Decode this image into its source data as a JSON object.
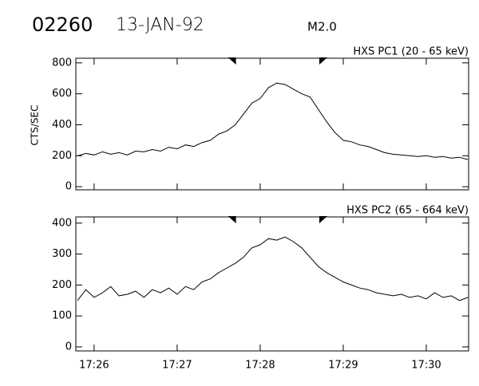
{
  "header": {
    "id": "02260",
    "date": "13-JAN-92",
    "class": "M2.0"
  },
  "chart_data": [
    {
      "type": "line",
      "title": "HXS PC1 (20 - 65 keV)",
      "y_label": "CTS/SEC",
      "x": [
        25.8,
        25.9,
        26.0,
        26.1,
        26.2,
        26.3,
        26.4,
        26.5,
        26.6,
        26.7,
        26.8,
        26.9,
        27.0,
        27.1,
        27.2,
        27.3,
        27.4,
        27.5,
        27.6,
        27.7,
        27.8,
        27.9,
        28.0,
        28.1,
        28.2,
        28.3,
        28.4,
        28.5,
        28.6,
        28.7,
        28.8,
        28.9,
        29.0,
        29.1,
        29.2,
        29.3,
        29.4,
        29.5,
        29.6,
        29.7,
        29.8,
        29.9,
        30.0,
        30.1,
        30.2,
        30.3,
        30.4,
        30.5
      ],
      "series": [
        {
          "color": "#000000",
          "values": [
            200,
            215,
            205,
            225,
            210,
            220,
            205,
            230,
            225,
            240,
            230,
            255,
            245,
            270,
            260,
            285,
            300,
            340,
            360,
            400,
            470,
            540,
            570,
            640,
            670,
            660,
            630,
            600,
            580,
            500,
            420,
            350,
            300,
            290,
            270,
            260,
            240,
            220,
            210,
            205,
            200,
            195,
            200,
            190,
            195,
            185,
            190,
            175
          ]
        }
      ],
      "xlim": [
        25.78,
        30.51
      ],
      "xticks": [
        26,
        27,
        28,
        29,
        30
      ],
      "ylim": [
        -20,
        830
      ],
      "yticks": [
        0,
        200,
        400,
        600,
        800
      ],
      "markers": [
        27.66,
        28.76
      ]
    },
    {
      "type": "line",
      "title": "HXS PC2 (65 - 664 keV)",
      "x": [
        25.8,
        25.9,
        26.0,
        26.1,
        26.2,
        26.3,
        26.4,
        26.5,
        26.6,
        26.7,
        26.8,
        26.9,
        27.0,
        27.1,
        27.2,
        27.3,
        27.4,
        27.5,
        27.6,
        27.7,
        27.8,
        27.9,
        28.0,
        28.1,
        28.2,
        28.3,
        28.4,
        28.5,
        28.6,
        28.7,
        28.8,
        28.9,
        29.0,
        29.1,
        29.2,
        29.3,
        29.4,
        29.5,
        29.6,
        29.7,
        29.8,
        29.9,
        30.0,
        30.1,
        30.2,
        30.3,
        30.4,
        30.5
      ],
      "series": [
        {
          "color": "#000000",
          "values": [
            150,
            185,
            160,
            175,
            195,
            165,
            170,
            180,
            160,
            185,
            175,
            190,
            170,
            195,
            185,
            210,
            220,
            240,
            255,
            270,
            290,
            320,
            330,
            350,
            345,
            355,
            340,
            320,
            290,
            260,
            240,
            225,
            210,
            200,
            190,
            185,
            175,
            170,
            165,
            170,
            160,
            165,
            155,
            175,
            160,
            165,
            150,
            160
          ]
        }
      ],
      "xlim": [
        25.78,
        30.51
      ],
      "xticks": [
        {
          "value": 26,
          "label": "17:26"
        },
        {
          "value": 27,
          "label": "17:27"
        },
        {
          "value": 28,
          "label": "17:28"
        },
        {
          "value": 29,
          "label": "17:29"
        },
        {
          "value": 30,
          "label": "17:30"
        }
      ],
      "ylim": [
        -13,
        420
      ],
      "yticks": [
        0,
        100,
        200,
        300,
        400
      ],
      "markers": [
        27.66,
        28.76
      ]
    }
  ]
}
